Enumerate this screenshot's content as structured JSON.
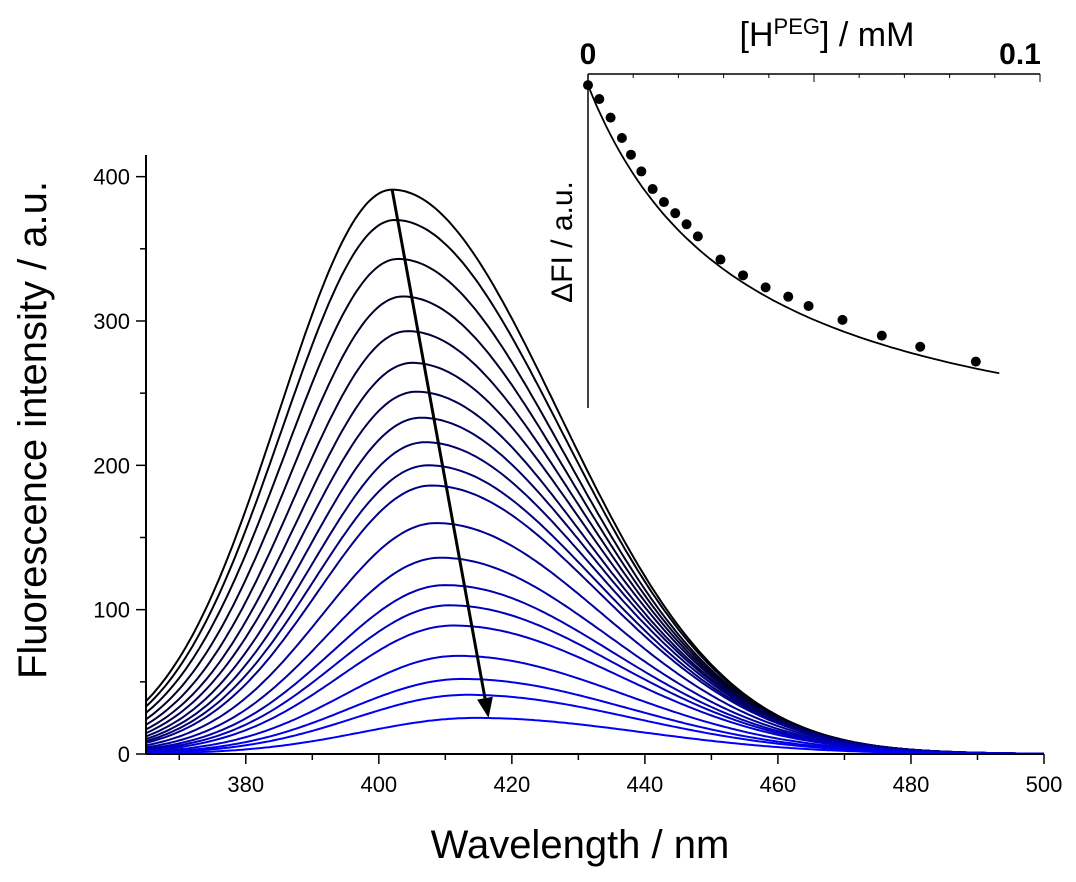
{
  "chart_data": [
    {
      "type": "line",
      "xlabel": "Wavelength / nm",
      "ylabel": "Fluorescence intensity / a.u.",
      "xlim": [
        365,
        500
      ],
      "ylim": [
        0,
        415
      ],
      "x_ticks": [
        "380",
        "400",
        "420",
        "440",
        "460",
        "480",
        "500"
      ],
      "y_ticks": [
        "0",
        "100",
        "200",
        "300",
        "400"
      ],
      "color_start": "#000000",
      "color_end": "#0000ff",
      "spectra_peaks": [
        {
          "peak_x": 402.0,
          "peak_y": 391
        },
        {
          "peak_x": 402.4,
          "peak_y": 370
        },
        {
          "peak_x": 402.9,
          "peak_y": 343
        },
        {
          "peak_x": 403.6,
          "peak_y": 317
        },
        {
          "peak_x": 404.3,
          "peak_y": 293
        },
        {
          "peak_x": 405.0,
          "peak_y": 271
        },
        {
          "peak_x": 405.6,
          "peak_y": 251
        },
        {
          "peak_x": 406.3,
          "peak_y": 233
        },
        {
          "peak_x": 406.9,
          "peak_y": 216
        },
        {
          "peak_x": 407.4,
          "peak_y": 200
        },
        {
          "peak_x": 407.9,
          "peak_y": 186
        },
        {
          "peak_x": 408.6,
          "peak_y": 160
        },
        {
          "peak_x": 409.3,
          "peak_y": 136
        },
        {
          "peak_x": 410.0,
          "peak_y": 117
        },
        {
          "peak_x": 410.6,
          "peak_y": 103
        },
        {
          "peak_x": 411.2,
          "peak_y": 89
        },
        {
          "peak_x": 411.9,
          "peak_y": 68
        },
        {
          "peak_x": 412.6,
          "peak_y": 52
        },
        {
          "peak_x": 413.3,
          "peak_y": 41
        },
        {
          "peak_x": 414.5,
          "peak_y": 25
        }
      ],
      "trend_arrow": {
        "x_start": 402,
        "y_start": 391,
        "x_end": 416.5,
        "y_end": 25
      }
    },
    {
      "type": "scatter",
      "xlabel_main": "[H",
      "xlabel_sup": "PEG",
      "xlabel_rest": "] / mM",
      "ylabel": "ΔFI / a.u.",
      "xlim": [
        0,
        0.1
      ],
      "x_ticks": [
        "0",
        "0.1"
      ],
      "points": [
        {
          "x": 0.0,
          "y": 388
        },
        {
          "x": 0.0025,
          "y": 373
        },
        {
          "x": 0.005,
          "y": 353
        },
        {
          "x": 0.0075,
          "y": 331
        },
        {
          "x": 0.0095,
          "y": 313
        },
        {
          "x": 0.0118,
          "y": 295
        },
        {
          "x": 0.0143,
          "y": 276
        },
        {
          "x": 0.0168,
          "y": 262
        },
        {
          "x": 0.0193,
          "y": 250
        },
        {
          "x": 0.0218,
          "y": 238
        },
        {
          "x": 0.0243,
          "y": 225
        },
        {
          "x": 0.0293,
          "y": 200
        },
        {
          "x": 0.0343,
          "y": 183
        },
        {
          "x": 0.0393,
          "y": 170
        },
        {
          "x": 0.0443,
          "y": 160
        },
        {
          "x": 0.0488,
          "y": 150
        },
        {
          "x": 0.0563,
          "y": 135
        },
        {
          "x": 0.065,
          "y": 118
        },
        {
          "x": 0.0735,
          "y": 106
        },
        {
          "x": 0.0858,
          "y": 90
        }
      ],
      "fit_curve": "hyperbolic",
      "ylim": [
        40,
        400
      ]
    }
  ]
}
